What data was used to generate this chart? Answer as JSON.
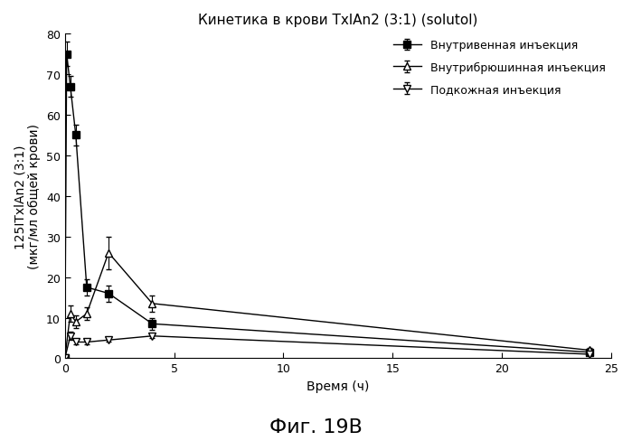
{
  "title": "Кинетика в крови TxlAn2 (3:1) (solutol)",
  "xlabel": "Время (ч)",
  "ylabel_line1": "125ITxlAn2 (3:1)",
  "ylabel_line2": "(мкг/мл общей крови)",
  "caption": "Фиг. 19B",
  "xlim": [
    0,
    25
  ],
  "ylim": [
    0,
    80
  ],
  "xticks": [
    0,
    5,
    10,
    15,
    20,
    25
  ],
  "yticks": [
    0,
    10,
    20,
    30,
    40,
    50,
    60,
    70,
    80
  ],
  "iv_x": [
    0,
    0.083,
    0.25,
    0.5,
    1.0,
    2.0,
    4.0,
    24.0
  ],
  "iv_y": [
    0,
    75.0,
    67.0,
    55.0,
    17.5,
    16.0,
    8.5,
    1.5
  ],
  "iv_yerr": [
    0,
    3.0,
    2.5,
    2.5,
    2.0,
    2.0,
    1.5,
    0.5
  ],
  "ip_x": [
    0,
    0.25,
    0.5,
    1.0,
    2.0,
    4.0,
    24.0
  ],
  "ip_y": [
    0,
    11.0,
    9.0,
    11.0,
    26.0,
    13.5,
    2.0
  ],
  "ip_yerr": [
    0,
    2.0,
    1.5,
    1.5,
    4.0,
    2.0,
    0.5
  ],
  "sc_x": [
    0,
    0.25,
    0.5,
    1.0,
    2.0,
    4.0,
    24.0
  ],
  "sc_y": [
    0,
    5.5,
    4.0,
    4.0,
    4.5,
    5.5,
    1.0
  ],
  "sc_yerr": [
    0,
    1.0,
    0.5,
    0.5,
    0.5,
    0.5,
    0.3
  ],
  "legend_iv": "Внутривенная инъекция",
  "legend_ip": "Внутрибрюшинная инъекция",
  "legend_sc": "Подкожная инъекция",
  "color": "#000000",
  "background": "#ffffff",
  "title_fontsize": 11,
  "axis_label_fontsize": 10,
  "tick_fontsize": 9,
  "legend_fontsize": 9,
  "caption_fontsize": 16
}
